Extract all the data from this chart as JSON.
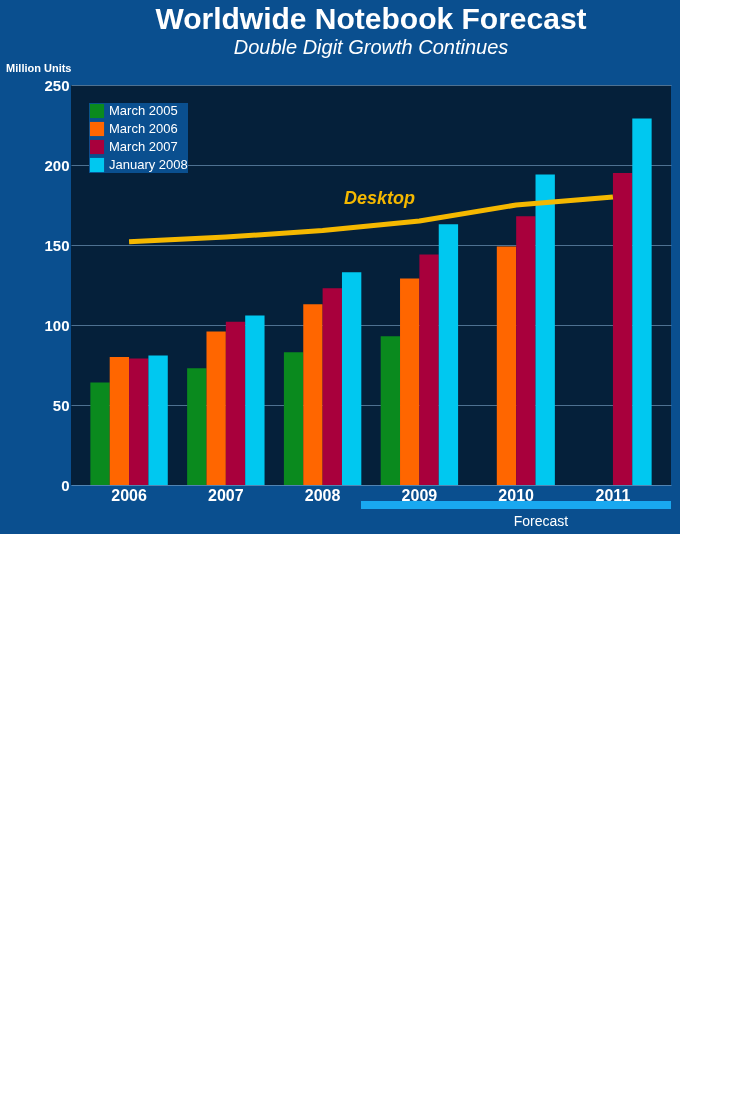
{
  "chart_data": {
    "type": "bar",
    "title": "Worldwide Notebook Forecast",
    "subtitle": "Double Digit Growth Continues",
    "ylabel": "Million Units",
    "categories": [
      "2006",
      "2007",
      "2008",
      "2009",
      "2010",
      "2011"
    ],
    "series": [
      {
        "name": "March 2005",
        "color": "#0a8a1e",
        "values": [
          64,
          73,
          83,
          93,
          null,
          null
        ]
      },
      {
        "name": "March 2006",
        "color": "#ff6600",
        "values": [
          80,
          96,
          113,
          129,
          149,
          null
        ]
      },
      {
        "name": "March 2007",
        "color": "#a8003c",
        "values": [
          79,
          102,
          123,
          144,
          168,
          195
        ]
      },
      {
        "name": "January 2008",
        "color": "#00c8f0",
        "values": [
          81,
          106,
          133,
          163,
          194,
          229
        ]
      },
      {
        "name": "Desktop",
        "type": "line",
        "color": "#f5b800",
        "values": [
          152,
          155,
          159,
          165,
          175,
          180
        ]
      }
    ],
    "ylim": [
      0,
      250
    ],
    "yticks": [
      0,
      50,
      100,
      150,
      200,
      250
    ],
    "grid": "y",
    "legend": "top left",
    "annotations": [
      "Forecast"
    ]
  }
}
